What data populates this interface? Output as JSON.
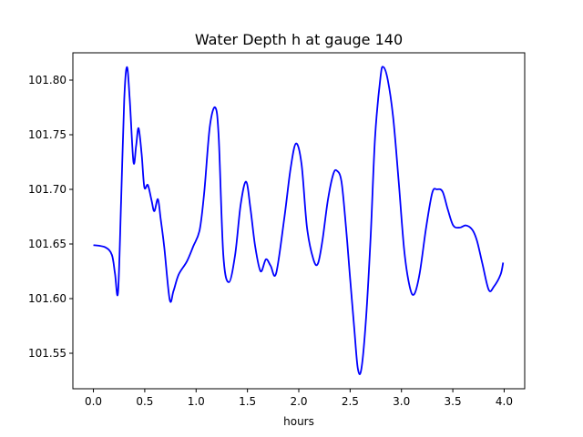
{
  "chart_data": {
    "type": "line",
    "title": "Water Depth h at gauge 140",
    "xlabel": "hours",
    "ylabel": "",
    "xlim": [
      -0.2,
      4.2
    ],
    "ylim": [
      101.5175,
      101.825
    ],
    "xticks": [
      0.0,
      0.5,
      1.0,
      1.5,
      2.0,
      2.5,
      3.0,
      3.5,
      4.0
    ],
    "xtick_labels": [
      "0.0",
      "0.5",
      "1.0",
      "1.5",
      "2.0",
      "2.5",
      "3.0",
      "3.5",
      "4.0"
    ],
    "yticks": [
      101.55,
      101.6,
      101.65,
      101.7,
      101.75,
      101.8
    ],
    "ytick_labels": [
      "101.55",
      "101.60",
      "101.65",
      "101.70",
      "101.75",
      "101.80"
    ],
    "grid": false,
    "series": [
      {
        "name": "h",
        "color": "#0000ff",
        "x": [
          0.0,
          0.115,
          0.18,
          0.21,
          0.24,
          0.27,
          0.3,
          0.327,
          0.354,
          0.39,
          0.416,
          0.44,
          0.47,
          0.496,
          0.53,
          0.566,
          0.593,
          0.628,
          0.655,
          0.69,
          0.743,
          0.78,
          0.83,
          0.91,
          0.973,
          1.035,
          1.08,
          1.133,
          1.186,
          1.22,
          1.265,
          1.319,
          1.38,
          1.434,
          1.487,
          1.53,
          1.575,
          1.628,
          1.68,
          1.726,
          1.779,
          1.858,
          1.92,
          1.973,
          2.027,
          2.08,
          2.142,
          2.186,
          2.23,
          2.283,
          2.336,
          2.372,
          2.416,
          2.46,
          2.496,
          2.54,
          2.575,
          2.61,
          2.655,
          2.7,
          2.743,
          2.796,
          2.823,
          2.867,
          2.92,
          2.973,
          3.027,
          3.08,
          3.124,
          3.177,
          3.24,
          3.3,
          3.345,
          3.4,
          3.45,
          3.504,
          3.566,
          3.628,
          3.69,
          3.735,
          3.788,
          3.85,
          3.9,
          3.965,
          3.99
        ],
        "y": [
          101.649,
          101.647,
          101.64,
          101.623,
          101.606,
          101.69,
          101.782,
          101.812,
          101.782,
          101.725,
          101.74,
          101.756,
          101.732,
          101.702,
          101.704,
          101.69,
          101.68,
          101.691,
          101.673,
          101.647,
          101.599,
          101.607,
          101.622,
          101.634,
          101.648,
          101.663,
          101.698,
          101.757,
          101.775,
          101.748,
          101.64,
          101.615,
          101.64,
          101.686,
          101.707,
          101.682,
          101.648,
          101.625,
          101.636,
          101.63,
          101.623,
          101.673,
          101.719,
          101.742,
          101.723,
          101.665,
          101.636,
          101.632,
          101.653,
          101.69,
          101.714,
          101.717,
          101.707,
          101.665,
          101.623,
          101.573,
          101.536,
          101.536,
          101.582,
          101.657,
          101.748,
          101.803,
          101.812,
          101.8,
          101.765,
          101.707,
          101.644,
          101.611,
          101.604,
          101.623,
          101.665,
          101.697,
          101.7,
          101.698,
          101.682,
          101.667,
          101.665,
          101.667,
          101.663,
          101.653,
          101.632,
          101.608,
          101.611,
          101.622,
          101.633
        ]
      }
    ]
  }
}
